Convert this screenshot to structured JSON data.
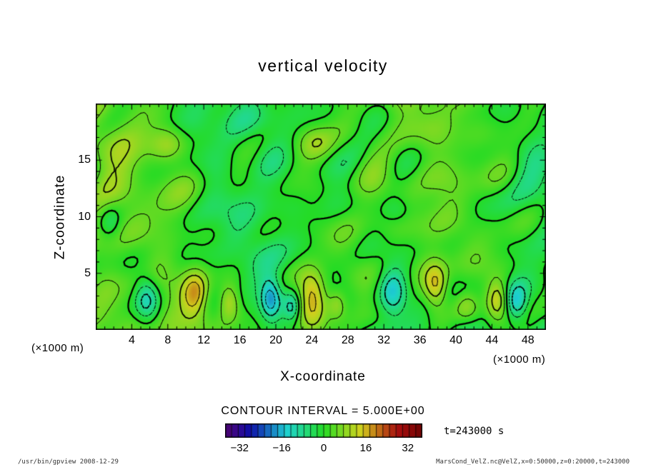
{
  "labels": {
    "contour_interval": "CONTOUR INTERVAL = 5.000E+00",
    "time": "t=243000 s"
  },
  "footer": {
    "left": "/usr/bin/gpview  2008-12-29",
    "right": "MarsCond_VelZ.nc@VelZ,x=0:50000,z=0:20000,t=243000"
  },
  "chart_data": {
    "type": "heatmap",
    "subtype": "filled-contour",
    "title": "vertical velocity",
    "xlabel": "X-coordinate",
    "ylabel": "Z-coordinate",
    "x_unit_label": "(×1000 m)",
    "y_unit_label": "(×1000 m)",
    "xlim": [
      0,
      50
    ],
    "zlim": [
      0,
      20
    ],
    "x_ticks": [
      4,
      8,
      12,
      16,
      20,
      24,
      28,
      32,
      36,
      40,
      44,
      48
    ],
    "y_ticks": [
      5,
      10,
      15
    ],
    "contour_interval": 5,
    "contour_levels": [
      -15,
      -10,
      -5,
      0,
      5,
      10,
      15,
      20
    ],
    "line_style": {
      "zero_width": 2.3,
      "thick_width": 1.7,
      "thin_width": 1.0,
      "negative_dashed": true
    },
    "colorbar": {
      "vmin": -37.5,
      "vmax": 37.5,
      "segment_interval": 2.5,
      "ticks": [
        -32,
        -16,
        0,
        16,
        32
      ]
    },
    "field": {
      "background": 0.8,
      "noise_seed": 20081229,
      "noise": [
        {
          "n": 9,
          "k_min": 0.12,
          "k_max": 0.42,
          "amp": 1.7
        },
        {
          "n": 14,
          "k_min": 0.7,
          "k_max": 1.6,
          "amp": 1.4
        }
      ],
      "features": [
        {
          "x": 5.6,
          "z": 2.8,
          "sx": 1.4,
          "sz": 2.0,
          "amp": -14
        },
        {
          "x": 11.0,
          "z": 3.1,
          "sx": 1.5,
          "sz": 2.2,
          "amp": 17
        },
        {
          "x": 14.7,
          "z": 2.4,
          "sx": 1.1,
          "sz": 1.5,
          "amp": 11
        },
        {
          "x": 19.4,
          "z": 2.7,
          "sx": 1.1,
          "sz": 1.8,
          "amp": -16
        },
        {
          "x": 21.8,
          "z": 2.0,
          "sx": 0.9,
          "sz": 1.3,
          "amp": -10
        },
        {
          "x": 24.0,
          "z": 3.0,
          "sx": 1.6,
          "sz": 2.3,
          "amp": 19
        },
        {
          "x": 26.8,
          "z": 2.2,
          "sx": 1.0,
          "sz": 1.3,
          "amp": 9
        },
        {
          "x": 33.0,
          "z": 3.3,
          "sx": 1.5,
          "sz": 2.0,
          "amp": -13
        },
        {
          "x": 37.8,
          "z": 3.8,
          "sx": 1.3,
          "sz": 1.9,
          "amp": 15
        },
        {
          "x": 41.3,
          "z": 2.0,
          "sx": 1.4,
          "sz": 1.4,
          "amp": 10
        },
        {
          "x": 44.6,
          "z": 2.6,
          "sx": 1.1,
          "sz": 1.6,
          "amp": 12
        },
        {
          "x": 46.8,
          "z": 2.4,
          "sx": 1.2,
          "sz": 1.7,
          "amp": -14
        },
        {
          "x": 8.0,
          "z": 16.5,
          "sx": 1.8,
          "sz": 1.4,
          "amp": 5.5
        },
        {
          "x": 24.5,
          "z": 16.5,
          "sx": 2.0,
          "sz": 1.5,
          "amp": 6
        },
        {
          "x": 1.5,
          "z": 9.5,
          "sx": 1.2,
          "sz": 1.5,
          "amp": -6
        },
        {
          "x": 33.5,
          "z": 10.5,
          "sx": 1.6,
          "sz": 1.3,
          "amp": -5.5
        }
      ]
    }
  }
}
